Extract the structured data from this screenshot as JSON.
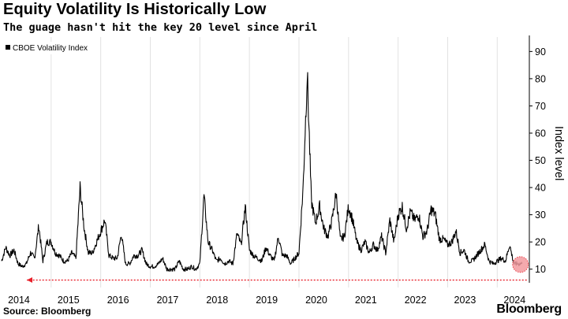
{
  "header": {
    "title": "Equity Volatility Is Historically Low",
    "subtitle": "The guage hasn't hit the key 20 level since April"
  },
  "footer": {
    "source": "Source: Bloomberg",
    "brand": "Bloomberg"
  },
  "chart_data": {
    "type": "line",
    "series": [
      {
        "name": "CBOE Volatility Index",
        "color": "#000000",
        "points": [
          [
            "2014-01",
            13
          ],
          [
            "2014-02",
            18
          ],
          [
            "2014-03",
            15
          ],
          [
            "2014-04",
            17
          ],
          [
            "2014-05",
            12
          ],
          [
            "2014-06",
            11
          ],
          [
            "2014-07",
            12
          ],
          [
            "2014-08",
            16
          ],
          [
            "2014-09",
            14
          ],
          [
            "2014-10",
            26
          ],
          [
            "2014-11",
            13
          ],
          [
            "2014-12",
            20
          ],
          [
            "2015-01",
            20
          ],
          [
            "2015-02",
            16
          ],
          [
            "2015-03",
            15
          ],
          [
            "2015-04",
            13
          ],
          [
            "2015-05",
            13
          ],
          [
            "2015-06",
            16
          ],
          [
            "2015-07",
            14
          ],
          [
            "2015-08",
            40
          ],
          [
            "2015-09",
            25
          ],
          [
            "2015-10",
            16
          ],
          [
            "2015-11",
            16
          ],
          [
            "2015-12",
            20
          ],
          [
            "2016-01",
            24
          ],
          [
            "2016-02",
            28
          ],
          [
            "2016-03",
            15
          ],
          [
            "2016-04",
            14
          ],
          [
            "2016-05",
            14
          ],
          [
            "2016-06",
            23
          ],
          [
            "2016-07",
            12
          ],
          [
            "2016-08",
            12
          ],
          [
            "2016-09",
            15
          ],
          [
            "2016-10",
            15
          ],
          [
            "2016-11",
            17
          ],
          [
            "2016-12",
            12
          ],
          [
            "2017-01",
            11
          ],
          [
            "2017-02",
            11
          ],
          [
            "2017-03",
            12
          ],
          [
            "2017-04",
            14
          ],
          [
            "2017-05",
            10
          ],
          [
            "2017-06",
            10
          ],
          [
            "2017-07",
            10
          ],
          [
            "2017-08",
            13
          ],
          [
            "2017-09",
            10
          ],
          [
            "2017-10",
            10
          ],
          [
            "2017-11",
            11
          ],
          [
            "2017-12",
            10
          ],
          [
            "2018-01",
            12
          ],
          [
            "2018-02",
            37
          ],
          [
            "2018-03",
            20
          ],
          [
            "2018-04",
            17
          ],
          [
            "2018-05",
            13
          ],
          [
            "2018-06",
            14
          ],
          [
            "2018-07",
            12
          ],
          [
            "2018-08",
            13
          ],
          [
            "2018-09",
            12
          ],
          [
            "2018-10",
            23
          ],
          [
            "2018-11",
            19
          ],
          [
            "2018-12",
            33
          ],
          [
            "2019-01",
            17
          ],
          [
            "2019-02",
            15
          ],
          [
            "2019-03",
            14
          ],
          [
            "2019-04",
            13
          ],
          [
            "2019-05",
            18
          ],
          [
            "2019-06",
            15
          ],
          [
            "2019-07",
            13
          ],
          [
            "2019-08",
            22
          ],
          [
            "2019-09",
            15
          ],
          [
            "2019-10",
            15
          ],
          [
            "2019-11",
            12
          ],
          [
            "2019-12",
            14
          ],
          [
            "2020-01",
            16
          ],
          [
            "2020-02",
            40
          ],
          [
            "2020-03",
            82
          ],
          [
            "2020-04",
            35
          ],
          [
            "2020-05",
            27
          ],
          [
            "2020-06",
            33
          ],
          [
            "2020-07",
            25
          ],
          [
            "2020-08",
            22
          ],
          [
            "2020-09",
            28
          ],
          [
            "2020-10",
            38
          ],
          [
            "2020-11",
            21
          ],
          [
            "2020-12",
            22
          ],
          [
            "2021-01",
            33
          ],
          [
            "2021-02",
            28
          ],
          [
            "2021-03",
            20
          ],
          [
            "2021-04",
            17
          ],
          [
            "2021-05",
            20
          ],
          [
            "2021-06",
            16
          ],
          [
            "2021-07",
            19
          ],
          [
            "2021-08",
            17
          ],
          [
            "2021-09",
            22
          ],
          [
            "2021-10",
            16
          ],
          [
            "2021-11",
            28
          ],
          [
            "2021-12",
            20
          ],
          [
            "2022-01",
            30
          ],
          [
            "2022-02",
            33
          ],
          [
            "2022-03",
            25
          ],
          [
            "2022-04",
            31
          ],
          [
            "2022-05",
            28
          ],
          [
            "2022-06",
            30
          ],
          [
            "2022-07",
            22
          ],
          [
            "2022-08",
            24
          ],
          [
            "2022-09",
            32
          ],
          [
            "2022-10",
            30
          ],
          [
            "2022-11",
            21
          ],
          [
            "2022-12",
            21
          ],
          [
            "2023-01",
            19
          ],
          [
            "2023-02",
            20
          ],
          [
            "2023-03",
            24
          ],
          [
            "2023-04",
            16
          ],
          [
            "2023-05",
            17
          ],
          [
            "2023-06",
            13
          ],
          [
            "2023-07",
            13
          ],
          [
            "2023-08",
            15
          ],
          [
            "2023-09",
            17
          ],
          [
            "2023-10",
            19
          ],
          [
            "2023-11",
            13
          ],
          [
            "2023-12",
            12
          ],
          [
            "2024-01",
            13
          ],
          [
            "2024-02",
            14
          ],
          [
            "2024-03",
            13
          ],
          [
            "2024-04",
            19
          ],
          [
            "2024-05",
            12
          ],
          [
            "2024-06",
            12
          ],
          [
            "2024-07",
            12
          ]
        ]
      }
    ],
    "x_ticks": [
      "2014",
      "2015",
      "2016",
      "2017",
      "2018",
      "2019",
      "2020",
      "2021",
      "2022",
      "2023",
      "2024"
    ],
    "y_ticks": [
      10,
      20,
      30,
      40,
      50,
      60,
      70,
      80,
      90
    ],
    "ylim": [
      5,
      93
    ],
    "ylabel": "Index level",
    "y_axis_side": "right",
    "legend": {
      "label": "CBOE Volatility Index",
      "placement": "top-left"
    },
    "grid": "vertical year lines",
    "annotations": [
      {
        "type": "arrow",
        "style": "dotted",
        "color": "#e8202a",
        "from": "2024-07",
        "to": "2014-01",
        "y": 6
      },
      {
        "type": "highlight-circle",
        "color": "#f29a9f",
        "at": "2024-07",
        "y": 12
      }
    ]
  }
}
